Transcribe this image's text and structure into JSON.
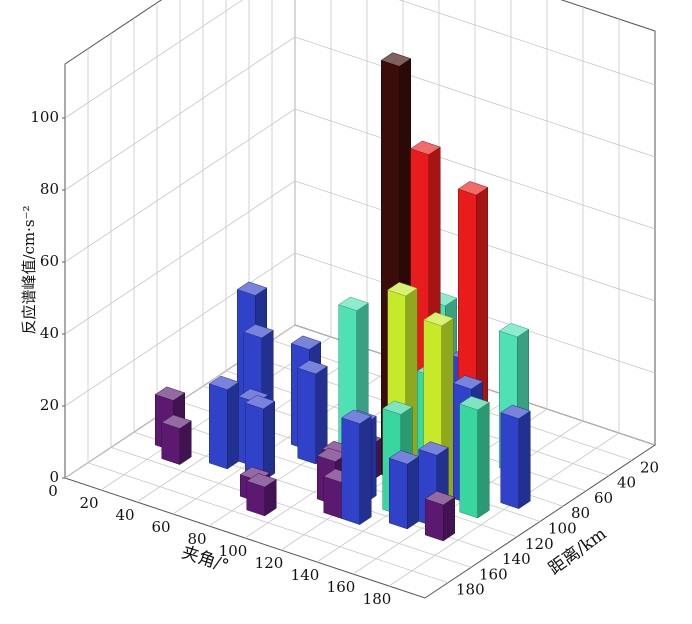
{
  "chart_data": {
    "type": "bar3d",
    "x_label": "夹角/°",
    "y_label": "距离/km",
    "z_label": "反应谱峰值/cm·s⁻²",
    "xlim": [
      0,
      200
    ],
    "ylim": [
      0,
      200
    ],
    "zlim": [
      0,
      115
    ],
    "xticks": [
      0,
      20,
      40,
      60,
      80,
      100,
      120,
      140,
      160,
      180
    ],
    "yticks": [
      20,
      40,
      60,
      80,
      100,
      120,
      140,
      160,
      180
    ],
    "zticks": [
      0,
      20,
      40,
      60,
      80,
      100
    ],
    "grid": true,
    "x": [
      20,
      30,
      40,
      50,
      50,
      60,
      70,
      70,
      80,
      80,
      90,
      90,
      100,
      100,
      110,
      110,
      120,
      120,
      130,
      130,
      120,
      140,
      140,
      150,
      150,
      140,
      150,
      160,
      160,
      170,
      170,
      180,
      120,
      130,
      160
    ],
    "y": [
      140,
      150,
      100,
      110,
      140,
      130,
      140,
      100,
      110,
      160,
      170,
      90,
      60,
      120,
      110,
      140,
      100,
      150,
      90,
      110,
      60,
      70,
      100,
      80,
      110,
      130,
      140,
      60,
      100,
      110,
      140,
      90,
      130,
      150,
      130
    ],
    "values": [
      14,
      10,
      38,
      30,
      22,
      18,
      20,
      28,
      25,
      6,
      8,
      40,
      30,
      8,
      10,
      12,
      115,
      10,
      90,
      55,
      40,
      30,
      32,
      80,
      50,
      28,
      18,
      38,
      32,
      30,
      10,
      25,
      22,
      28,
      20
    ],
    "colors": [
      "#5b1a70",
      "#5b1a70",
      "#2f42c8",
      "#2f42c8",
      "#2f42c8",
      "#2f42c8",
      "#2f42c8",
      "#2f42c8",
      "#2f42c8",
      "#5b1a70",
      "#5b1a70",
      "#4fe0b4",
      "#2f42c8",
      "#5b1a70",
      "#5b1a70",
      "#5b1a70",
      "#3a0c0a",
      "#5b1a70",
      "#e81c1c",
      "#c6ea2a",
      "#4fe0b4",
      "#2f42c8",
      "#3ad6a0",
      "#e81c1c",
      "#c6ea2a",
      "#3ad6a0",
      "#2f42c8",
      "#4fe0b4",
      "#2f42c8",
      "#3ad6a0",
      "#5b1a70",
      "#2f42c8",
      "#2f42c8",
      "#2f42c8",
      "#2f42c8"
    ]
  }
}
